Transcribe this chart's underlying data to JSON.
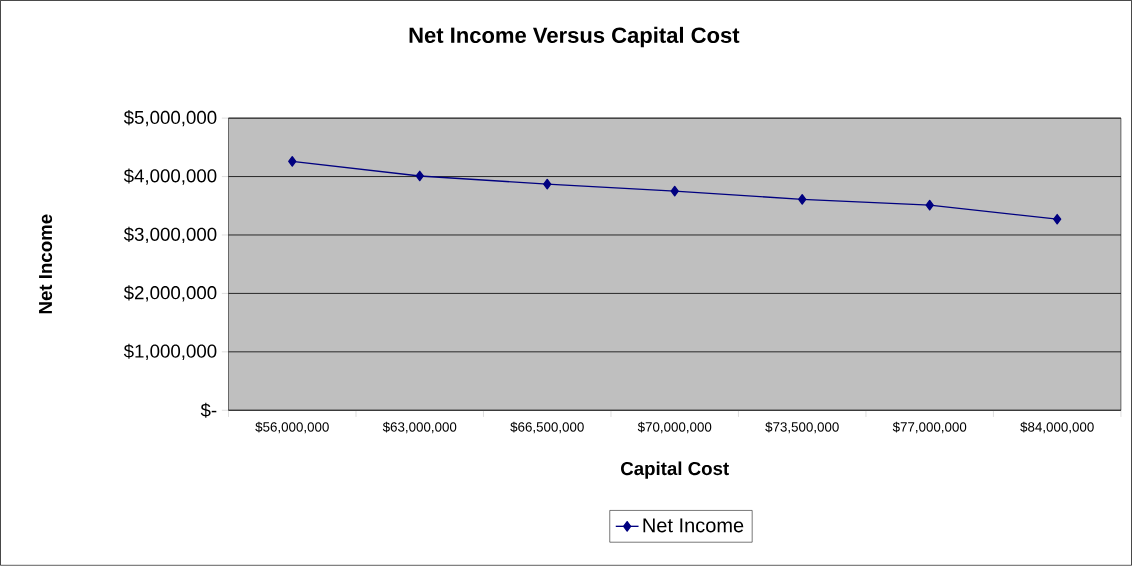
{
  "chart_data": {
    "type": "line",
    "title": "Net Income Versus Capital Cost",
    "xlabel": "Capital Cost",
    "ylabel": "Net Income",
    "categories": [
      "$56,000,000",
      "$63,000,000",
      "$66,500,000",
      "$70,000,000",
      "$73,500,000",
      "$77,000,000",
      "$84,000,000"
    ],
    "series": [
      {
        "name": "Net Income",
        "color": "#000080",
        "values": [
          4260000,
          4010000,
          3870000,
          3750000,
          3610000,
          3510000,
          3270000
        ]
      }
    ],
    "ylim": [
      0,
      5000000
    ],
    "yticks": [
      {
        "value": 0,
        "label": "$-"
      },
      {
        "value": 1000000,
        "label": "$1,000,000"
      },
      {
        "value": 2000000,
        "label": "$2,000,000"
      },
      {
        "value": 3000000,
        "label": "$3,000,000"
      },
      {
        "value": 4000000,
        "label": "$4,000,000"
      },
      {
        "value": 5000000,
        "label": "$5,000,000"
      }
    ],
    "grid": "y",
    "legend": "bottom",
    "marker": "diamond",
    "line_style": "solid"
  }
}
